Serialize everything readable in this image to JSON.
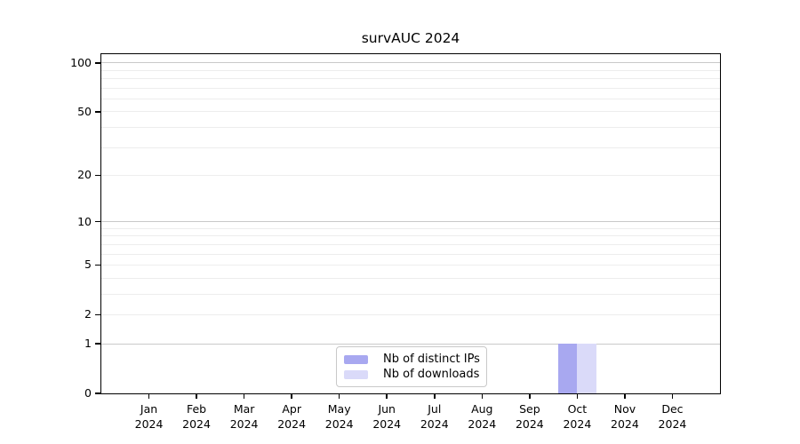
{
  "title": "survAUC 2024",
  "chart_data": {
    "type": "bar",
    "title": "survAUC 2024",
    "xlabel": "",
    "ylabel": "",
    "categories": [
      "Jan",
      "Feb",
      "Mar",
      "Apr",
      "May",
      "Jun",
      "Jul",
      "Aug",
      "Sep",
      "Oct",
      "Nov",
      "Dec"
    ],
    "x_year_label": "2024",
    "series": [
      {
        "name": "Nb of distinct IPs",
        "color": "#a8a8f0",
        "values": [
          0,
          0,
          0,
          0,
          0,
          0,
          0,
          0,
          0,
          1,
          0,
          0
        ]
      },
      {
        "name": "Nb of downloads",
        "color": "#dadaf9",
        "values": [
          0,
          0,
          0,
          0,
          0,
          0,
          0,
          0,
          0,
          1,
          0,
          0
        ]
      }
    ],
    "y_axis": {
      "scale": "log1p",
      "ylim": [
        0,
        113
      ],
      "tick_values": [
        100,
        50,
        20,
        10,
        5,
        2,
        1,
        0
      ],
      "tick_labels": [
        "100",
        "50",
        "20",
        "10",
        "5",
        "2",
        "1",
        "0"
      ],
      "major_gridlines": [
        1,
        10,
        100
      ],
      "minor_gridlines": [
        2,
        3,
        4,
        5,
        6,
        7,
        8,
        9,
        20,
        30,
        40,
        50,
        60,
        70,
        80,
        90
      ]
    },
    "grid": true,
    "legend_position": "bottom-center",
    "bar_width_ratio": 0.4
  }
}
